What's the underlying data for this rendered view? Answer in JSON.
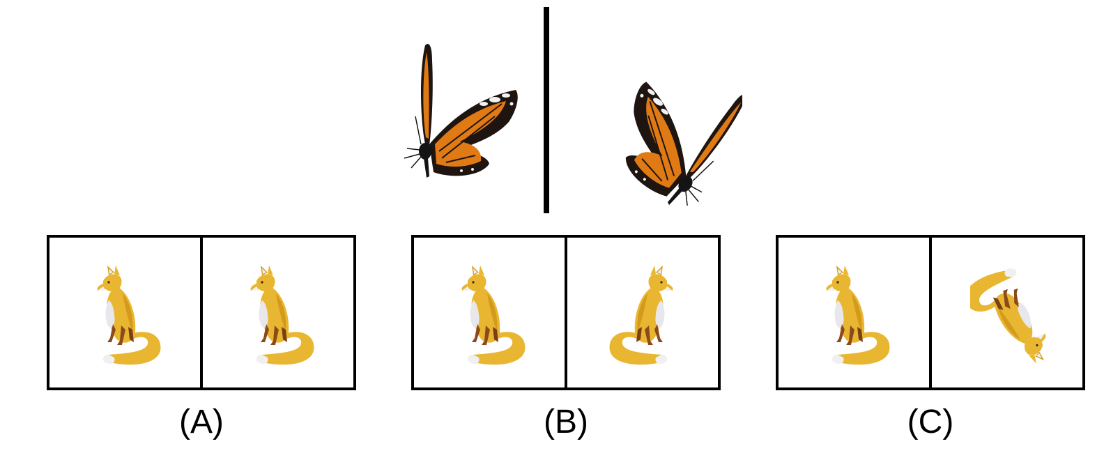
{
  "reference": {
    "subject_icon": "butterfly-icon",
    "divider": "mirror-line"
  },
  "options": [
    {
      "label": "(A)",
      "left_icon": "fox-icon",
      "right_icon": "fox-icon",
      "right_transform": "same"
    },
    {
      "label": "(B)",
      "left_icon": "fox-icon",
      "right_icon": "fox-icon",
      "right_transform": "mirrored"
    },
    {
      "label": "(C)",
      "left_icon": "fox-icon",
      "right_icon": "fox-icon",
      "right_transform": "rotated"
    }
  ],
  "colors": {
    "fox_body": "#e9b631",
    "fox_shade": "#d39a1c",
    "fox_belly": "#e8e8ec",
    "fox_legs": "#8a4a1c",
    "wing_orange": "#e07a14",
    "wing_dark": "#1e1410",
    "wing_spot": "#f2f2f2"
  }
}
